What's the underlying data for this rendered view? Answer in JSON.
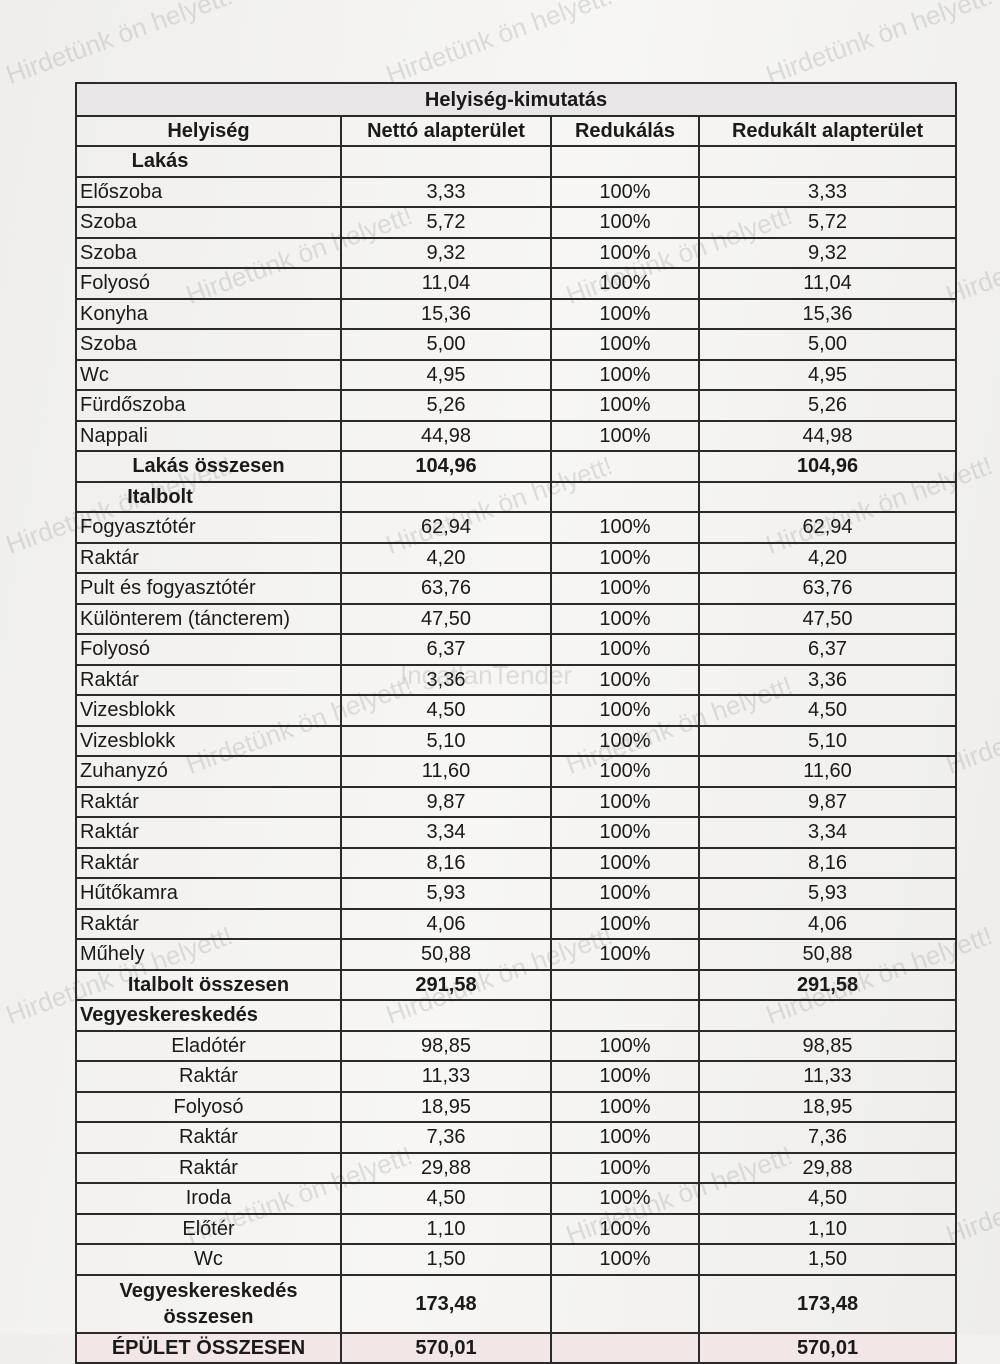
{
  "table": {
    "title": "Helyiség-kimutatás",
    "headers": [
      "Helyiség",
      "Nettó alapterület",
      "Redukálás",
      "Redukált alapterület"
    ],
    "sections": [
      {
        "name": "Lakás",
        "rows": [
          [
            "Előszoba",
            "3,33",
            "100%",
            "3,33"
          ],
          [
            "Szoba",
            "5,72",
            "100%",
            "5,72"
          ],
          [
            "Szoba",
            "9,32",
            "100%",
            "9,32"
          ],
          [
            "Folyosó",
            "11,04",
            "100%",
            "11,04"
          ],
          [
            "Konyha",
            "15,36",
            "100%",
            "15,36"
          ],
          [
            "Szoba",
            "5,00",
            "100%",
            "5,00"
          ],
          [
            "Wc",
            "4,95",
            "100%",
            "4,95"
          ],
          [
            "Fürdőszoba",
            "5,26",
            "100%",
            "5,26"
          ],
          [
            "Nappali",
            "44,98",
            "100%",
            "44,98"
          ]
        ],
        "total": [
          "Lakás összesen",
          "104,96",
          "104,96"
        ]
      },
      {
        "name": "Italbolt",
        "rows": [
          [
            "Fogyasztótér",
            "62,94",
            "100%",
            "62,94"
          ],
          [
            "Raktár",
            "4,20",
            "100%",
            "4,20"
          ],
          [
            "Pult és fogyasztótér",
            "63,76",
            "100%",
            "63,76"
          ],
          [
            "Különterem (táncterem)",
            "47,50",
            "100%",
            "47,50"
          ],
          [
            "Folyosó",
            "6,37",
            "100%",
            "6,37"
          ],
          [
            "Raktár",
            "3,36",
            "100%",
            "3,36"
          ],
          [
            "Vizesblokk",
            "4,50",
            "100%",
            "4,50"
          ],
          [
            "Vizesblokk",
            "5,10",
            "100%",
            "5,10"
          ],
          [
            "Zuhanyzó",
            "11,60",
            "100%",
            "11,60"
          ],
          [
            "Raktár",
            "9,87",
            "100%",
            "9,87"
          ],
          [
            "Raktár",
            "3,34",
            "100%",
            "3,34"
          ],
          [
            "Raktár",
            "8,16",
            "100%",
            "8,16"
          ],
          [
            "Hűtőkamra",
            "5,93",
            "100%",
            "5,93"
          ],
          [
            "Raktár",
            "4,06",
            "100%",
            "4,06"
          ],
          [
            "Műhely",
            "50,88",
            "100%",
            "50,88"
          ]
        ],
        "total": [
          "Italbolt összesen",
          "291,58",
          "291,58"
        ]
      },
      {
        "name": "Vegyeskereskedés",
        "rows": [
          [
            "Eladótér",
            "98,85",
            "100%",
            "98,85"
          ],
          [
            "Raktár",
            "11,33",
            "100%",
            "11,33"
          ],
          [
            "Folyosó",
            "18,95",
            "100%",
            "18,95"
          ],
          [
            "Raktár",
            "7,36",
            "100%",
            "7,36"
          ],
          [
            "Raktár",
            "29,88",
            "100%",
            "29,88"
          ],
          [
            "Iroda",
            "4,50",
            "100%",
            "4,50"
          ],
          [
            "Előtér",
            "1,10",
            "100%",
            "1,10"
          ],
          [
            "Wc",
            "1,50",
            "100%",
            "1,50"
          ]
        ],
        "total": [
          "Vegyeskereskedés összesen",
          "173,48",
          "173,48"
        ]
      }
    ],
    "grand_total": [
      "ÉPÜLET ÖSSZESEN",
      "570,01",
      "570,01"
    ]
  },
  "watermarks": [
    "Hirdetünk ön helyett!",
    "IngatlanTender"
  ]
}
